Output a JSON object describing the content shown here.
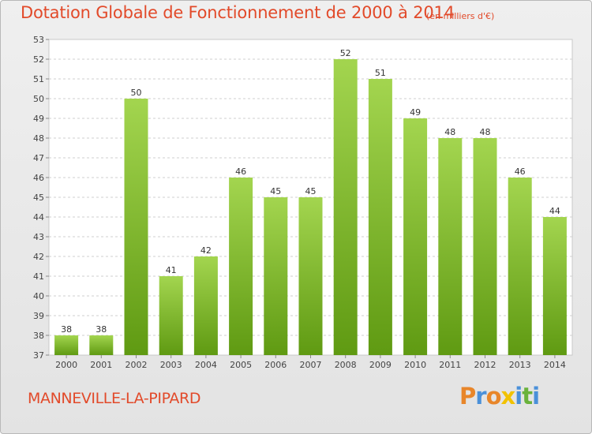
{
  "page": {
    "title": "Dotation Globale de Fonctionnement de 2000 à 2014",
    "subtitle": "(en milliers d'€)",
    "commune": "MANNEVILLE-LA-PIPARD",
    "logo": "Proxiti",
    "colors": {
      "title": "#e24a2a",
      "bar_light": "#a3d54f",
      "bar_dark": "#5f9a12",
      "logo_letters": [
        "#e8862a",
        "#4a90d9",
        "#e8862a",
        "#f2c200",
        "#4a90d9",
        "#6ab23c",
        "#4a90d9"
      ]
    }
  },
  "chart_data": {
    "type": "bar",
    "title": "Dotation Globale de Fonctionnement de 2000 à 2014",
    "subtitle": "(en milliers d'€)",
    "categories": [
      "2000",
      "2001",
      "2002",
      "2003",
      "2004",
      "2005",
      "2006",
      "2007",
      "2008",
      "2009",
      "2010",
      "2011",
      "2012",
      "2013",
      "2014"
    ],
    "values": [
      38,
      38,
      50,
      41,
      42,
      46,
      45,
      45,
      52,
      51,
      49,
      48,
      48,
      46,
      44
    ],
    "ylim": [
      37,
      53
    ],
    "yticks": [
      37,
      38,
      39,
      40,
      41,
      42,
      43,
      44,
      45,
      46,
      47,
      48,
      49,
      50,
      51,
      52,
      53
    ],
    "grid": "horizontal-dashed",
    "data_labels": true
  }
}
